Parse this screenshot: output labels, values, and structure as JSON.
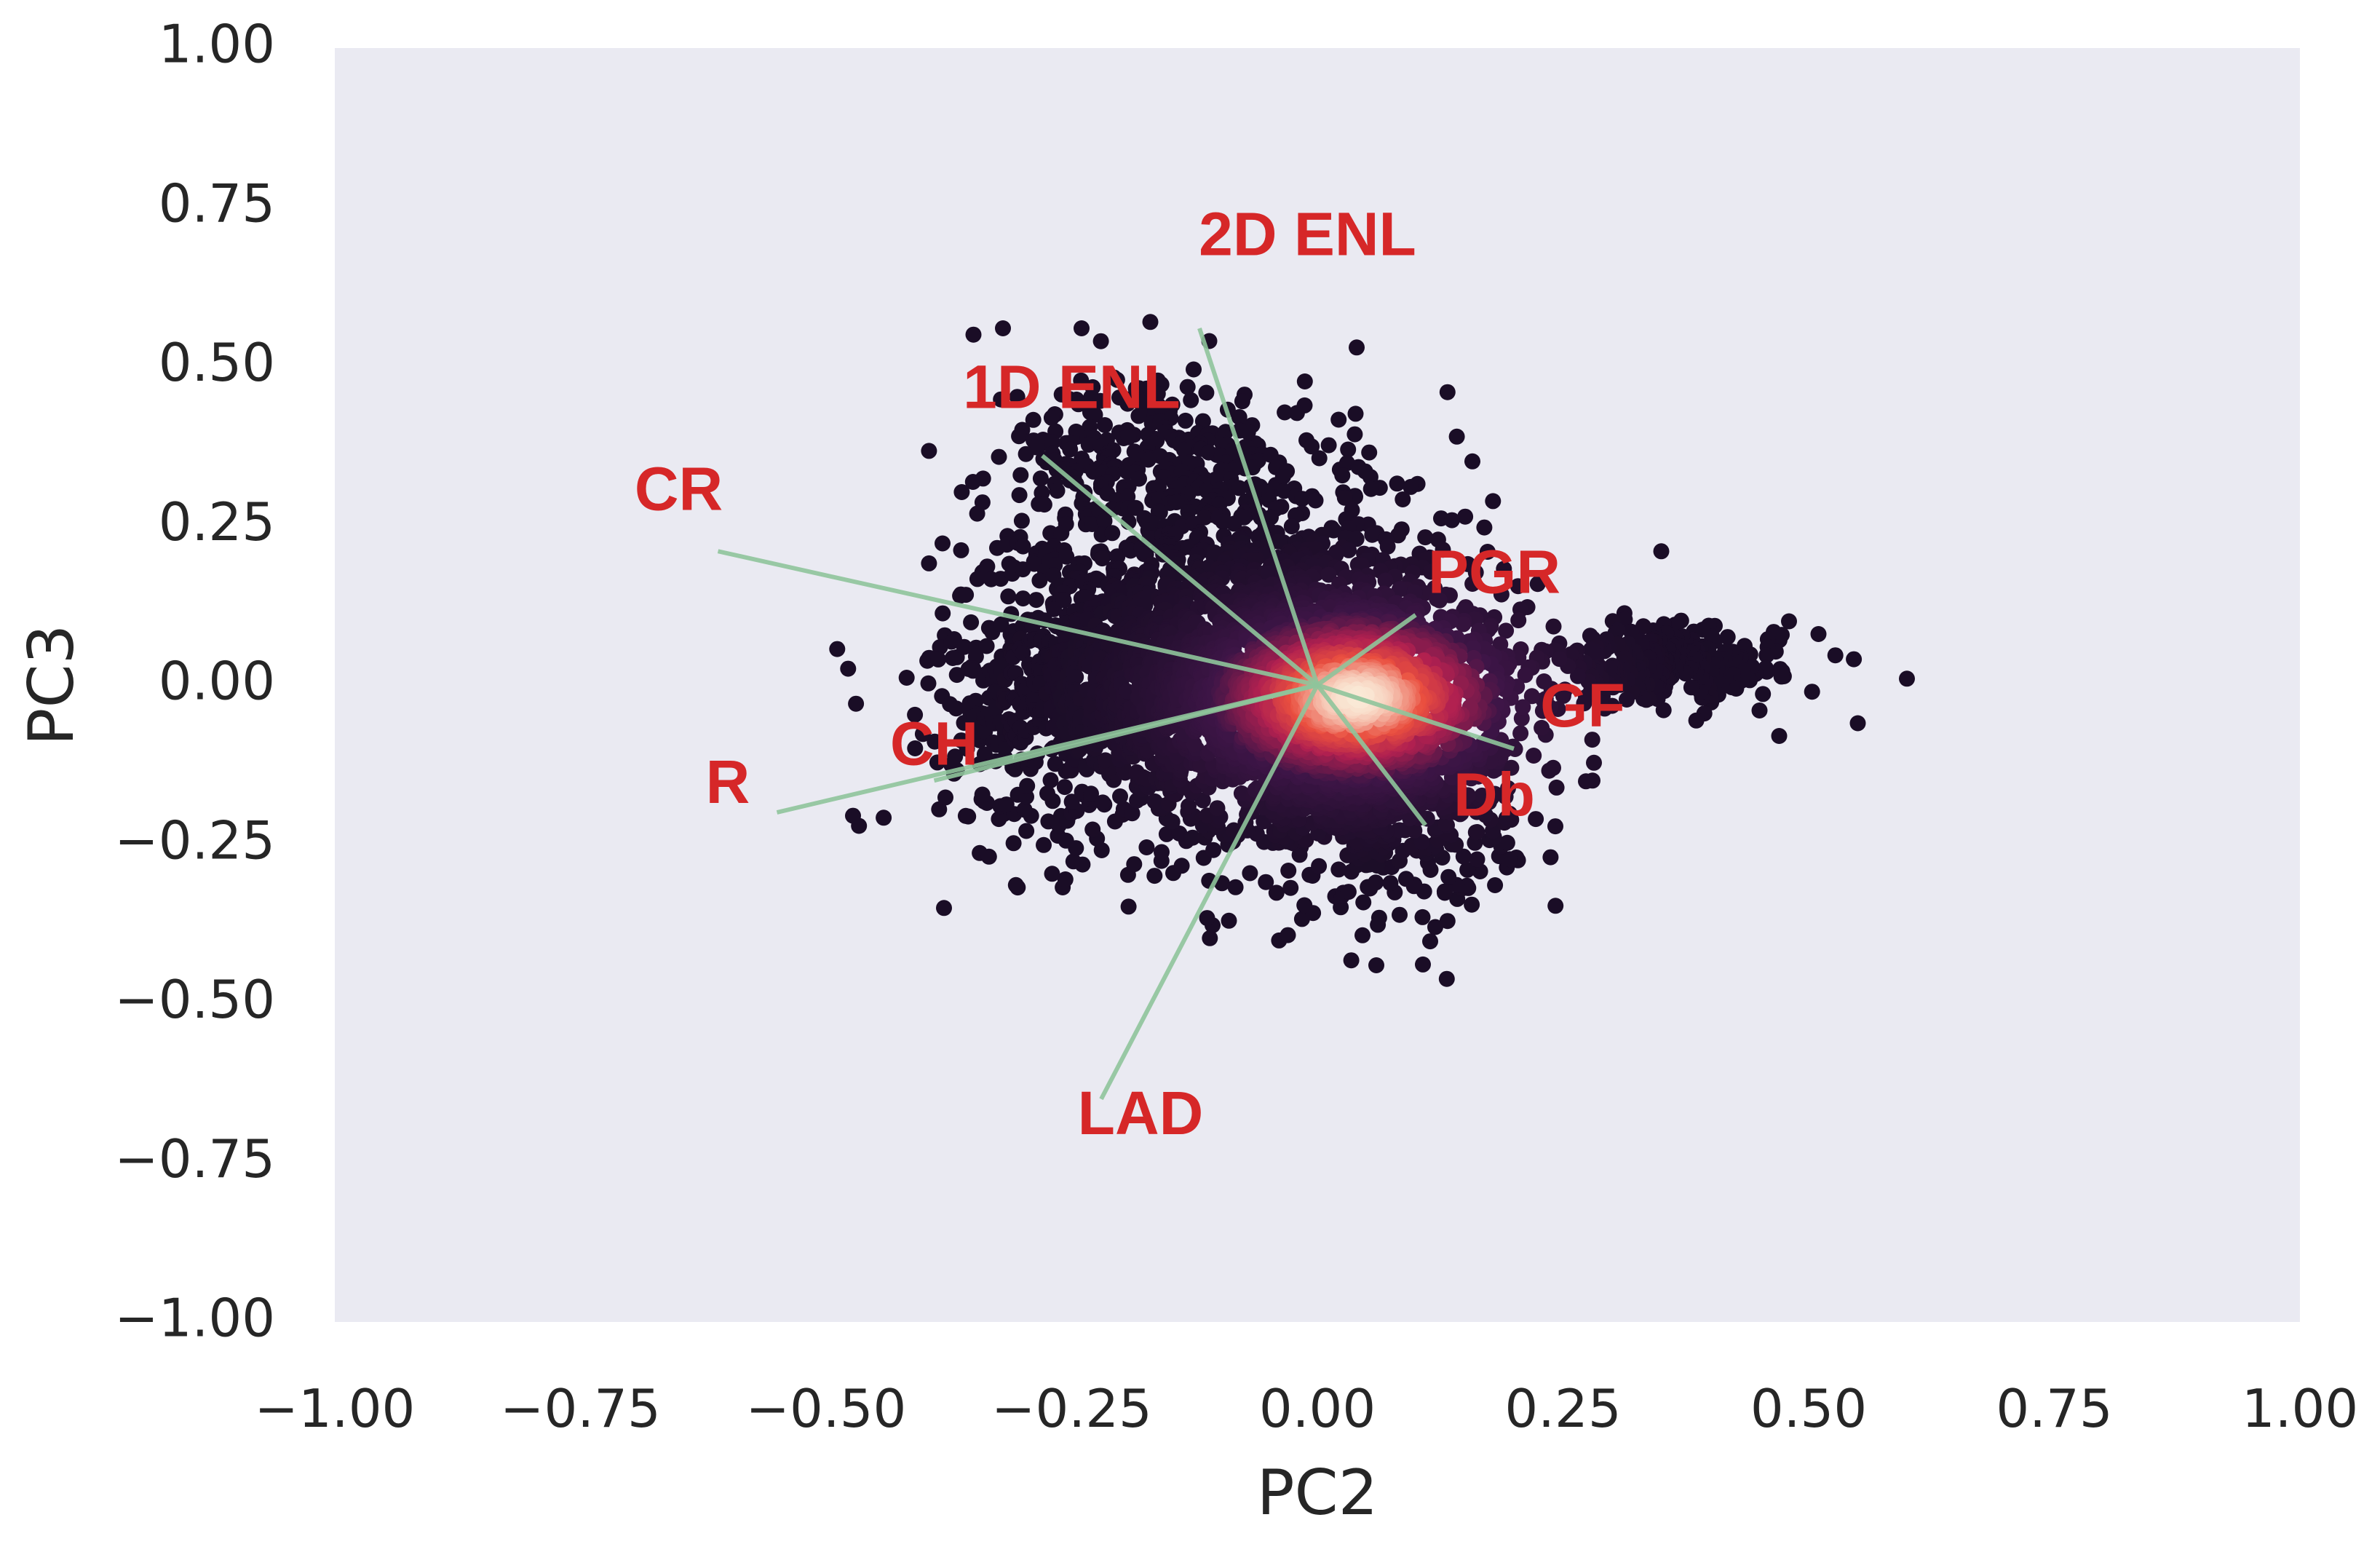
{
  "chart_data": {
    "type": "scatter",
    "xlabel": "PC2",
    "ylabel": "PC3",
    "xlim": [
      -1.0,
      1.0
    ],
    "ylim": [
      -1.0,
      1.0
    ],
    "xticks": [
      -1.0,
      -0.75,
      -0.5,
      -0.25,
      0.0,
      0.25,
      0.5,
      0.75,
      1.0
    ],
    "yticks": [
      -1.0,
      -0.75,
      -0.5,
      -0.25,
      0.0,
      0.25,
      0.5,
      0.75,
      1.0
    ],
    "xtick_labels": [
      "−1.00",
      "−0.75",
      "−0.50",
      "−0.25",
      "0.00",
      "0.25",
      "0.50",
      "0.75",
      "1.00"
    ],
    "ytick_labels": [
      "−1.00",
      "−0.75",
      "−0.50",
      "−0.25",
      "0.00",
      "0.25",
      "0.50",
      "0.75",
      "1.00"
    ],
    "grid": false,
    "background_color": "#eaeaf2",
    "point_color_low": "#1a0d26",
    "point_color_high": "#fae9d6",
    "arrow_color": "#8fc49b",
    "label_color": "#d62728",
    "density_core": {
      "x": 0.04,
      "y": -0.02
    },
    "clusters": [
      {
        "cx": 0.03,
        "cy": -0.02,
        "sx": 0.09,
        "sy": 0.09,
        "n": 1400
      },
      {
        "cx": -0.2,
        "cy": 0.0,
        "sx": 0.09,
        "sy": 0.12,
        "n": 1100
      },
      {
        "cx": -0.05,
        "cy": 0.12,
        "sx": 0.1,
        "sy": 0.12,
        "n": 700
      },
      {
        "cx": 0.06,
        "cy": -0.18,
        "sx": 0.07,
        "sy": 0.08,
        "n": 500
      },
      {
        "cx": 0.35,
        "cy": 0.03,
        "sx": 0.06,
        "sy": 0.03,
        "n": 260
      },
      {
        "cx": -0.18,
        "cy": 0.35,
        "sx": 0.07,
        "sy": 0.07,
        "n": 260
      }
    ],
    "outliers": [
      {
        "x": 0.6,
        "y": 0.01
      },
      {
        "x": 0.55,
        "y": -0.06
      },
      {
        "x": 0.51,
        "y": 0.08
      },
      {
        "x": 0.48,
        "y": 0.1
      },
      {
        "x": 0.47,
        "y": -0.08
      },
      {
        "x": 0.45,
        "y": -0.04
      },
      {
        "x": 0.43,
        "y": 0.04
      },
      {
        "x": 0.35,
        "y": 0.21
      },
      {
        "x": -0.35,
        "y": 0.55
      },
      {
        "x": -0.32,
        "y": 0.56
      },
      {
        "x": -0.24,
        "y": 0.56
      },
      {
        "x": -0.17,
        "y": 0.57
      },
      {
        "x": -0.11,
        "y": 0.54
      },
      {
        "x": 0.04,
        "y": 0.53
      },
      {
        "x": 0.06,
        "y": -0.44
      },
      {
        "x": 0.12,
        "y": -0.38
      },
      {
        "x": -0.38,
        "y": -0.35
      },
      {
        "x": -0.09,
        "y": -0.37
      },
      {
        "x": 0.24,
        "y": -0.13
      },
      {
        "x": 0.28,
        "y": -0.15
      }
    ],
    "loadings": [
      {
        "name": "CR",
        "x": -0.61,
        "y": 0.21,
        "lx": -0.65,
        "ly": 0.3
      },
      {
        "name": "R",
        "x": -0.55,
        "y": -0.2,
        "lx": -0.6,
        "ly": -0.16
      },
      {
        "name": "CH",
        "x": -0.39,
        "y": -0.15,
        "lx": -0.39,
        "ly": -0.1
      },
      {
        "name": "1D ENL",
        "x": -0.28,
        "y": 0.36,
        "lx": -0.25,
        "ly": 0.46
      },
      {
        "name": "2D ENL",
        "x": -0.12,
        "y": 0.56,
        "lx": -0.01,
        "ly": 0.7
      },
      {
        "name": "LAD",
        "x": -0.22,
        "y": -0.65,
        "lx": -0.18,
        "ly": -0.68
      },
      {
        "name": "PGR",
        "x": 0.1,
        "y": 0.11,
        "lx": 0.18,
        "ly": 0.17
      },
      {
        "name": "GF",
        "x": 0.2,
        "y": -0.1,
        "lx": 0.27,
        "ly": -0.04
      },
      {
        "name": "Db",
        "x": 0.11,
        "y": -0.22,
        "lx": 0.18,
        "ly": -0.18
      }
    ]
  }
}
